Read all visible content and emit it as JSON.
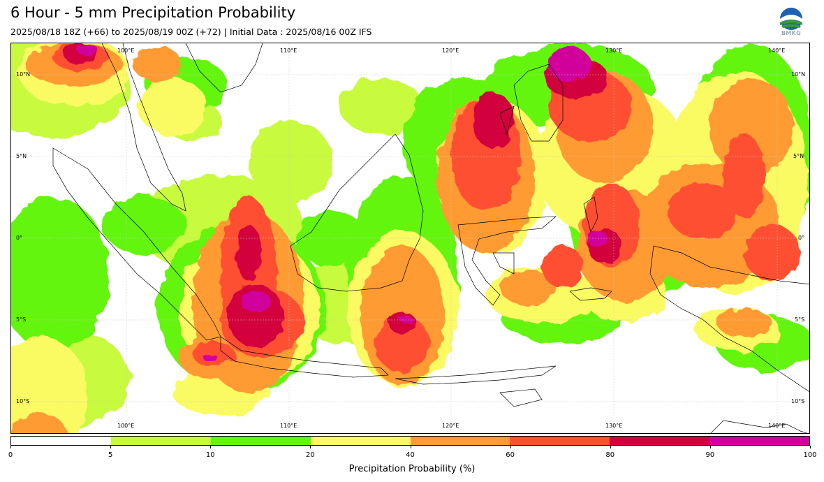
{
  "title": "6 Hour - 5 mm Precipitation Probability",
  "subtitle": "2025/08/18 18Z (+66) to 2025/08/19 00Z (+72) | Initial Data : 2025/08/16 00Z IFS",
  "logo": {
    "text": "BMKG",
    "icon": "bmkg-logo-icon"
  },
  "map": {
    "top_lon_labels": [
      "100°E",
      "110°E",
      "120°E",
      "130°E",
      "140°E"
    ],
    "bottom_lon_labels": [
      "100°E",
      "110°E",
      "120°E",
      "130°E",
      "140°E"
    ],
    "left_lat_labels": [
      "10°N",
      "5°N",
      "0°",
      "5°S",
      "10°S"
    ],
    "right_lat_labels": [
      "10°N",
      "5°N",
      "0°",
      "5°S",
      "10°S"
    ]
  },
  "colorbar": {
    "label": "Precipitation Probability (%)",
    "ticks": [
      "0",
      "5",
      "10",
      "20",
      "40",
      "60",
      "80",
      "90",
      "100"
    ],
    "colors": [
      "#ffffff",
      "#c8fa3c",
      "#64f50a",
      "#fafa64",
      "#ff9b32",
      "#ff5032",
      "#d2003c",
      "#d2009b"
    ]
  }
}
